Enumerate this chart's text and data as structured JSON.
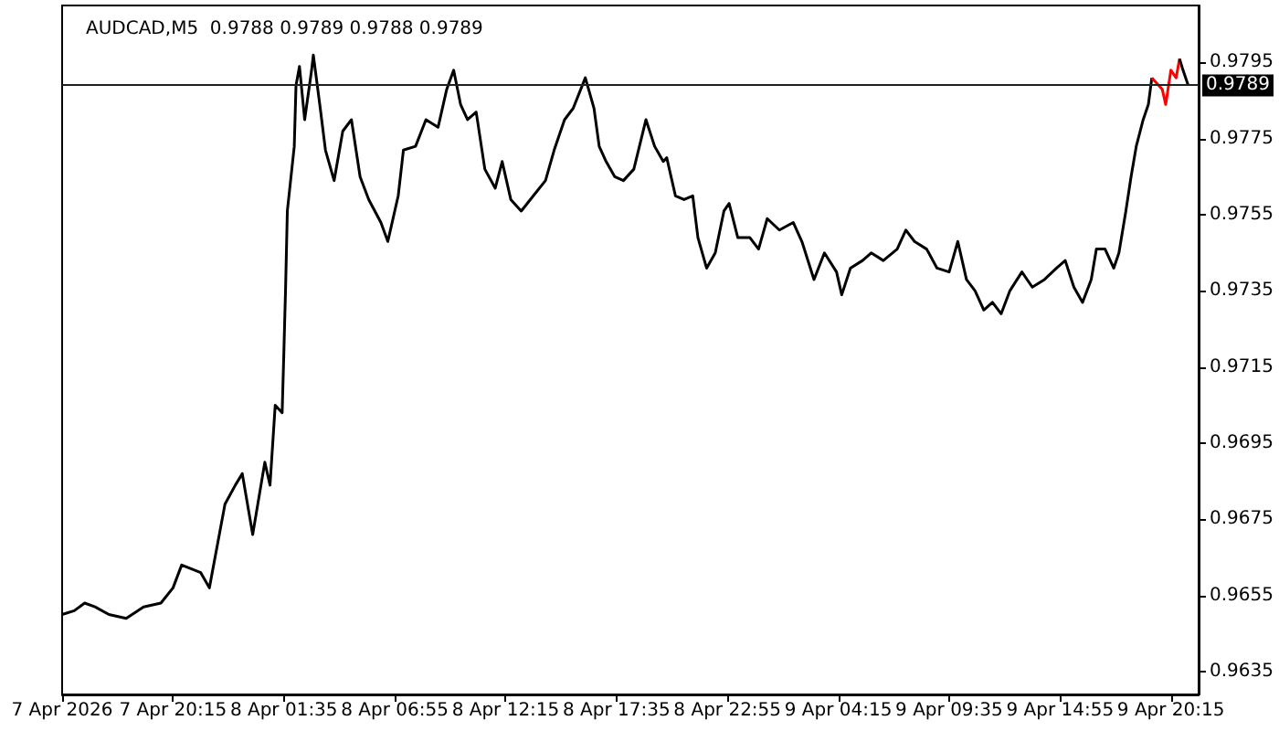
{
  "chart_data": {
    "type": "line",
    "title": "AUDCAD,M5  0.9788 0.9789 0.9788 0.9789",
    "series": [
      {
        "color": "#000000",
        "x": [
          "2026-04-07T14:55",
          "2026-04-07T15:30",
          "2026-04-07T16:00",
          "2026-04-07T16:30",
          "2026-04-07T17:10",
          "2026-04-07T18:00",
          "2026-04-07T18:50",
          "2026-04-07T19:40",
          "2026-04-07T20:15",
          "2026-04-07T20:40",
          "2026-04-07T21:35",
          "2026-04-07T22:00",
          "2026-04-07T22:45",
          "2026-04-07T23:15",
          "2026-04-07T23:35",
          "2026-04-08T00:05",
          "2026-04-08T00:40",
          "2026-04-08T00:55",
          "2026-04-08T01:10",
          "2026-04-08T01:30",
          "2026-04-08T01:35",
          "2026-04-08T01:40",
          "2026-04-08T01:45",
          "2026-04-08T02:05",
          "2026-04-08T02:10",
          "2026-04-08T02:20",
          "2026-04-08T02:35",
          "2026-04-08T02:55",
          "2026-04-08T03:00",
          "2026-04-08T03:20",
          "2026-04-08T03:35",
          "2026-04-08T04:00",
          "2026-04-08T04:25",
          "2026-04-08T04:50",
          "2026-04-08T05:15",
          "2026-04-08T05:40",
          "2026-04-08T06:15",
          "2026-04-08T06:35",
          "2026-04-08T07:05",
          "2026-04-08T07:20",
          "2026-04-08T07:55",
          "2026-04-08T08:25",
          "2026-04-08T09:00",
          "2026-04-08T09:25",
          "2026-04-08T09:45",
          "2026-04-08T10:05",
          "2026-04-08T10:25",
          "2026-04-08T10:50",
          "2026-04-08T11:15",
          "2026-04-08T11:45",
          "2026-04-08T12:05",
          "2026-04-08T12:30",
          "2026-04-08T13:00",
          "2026-04-08T13:35",
          "2026-04-08T14:10",
          "2026-04-08T14:35",
          "2026-04-08T15:05",
          "2026-04-08T15:30",
          "2026-04-08T16:05",
          "2026-04-08T16:30",
          "2026-04-08T16:45",
          "2026-04-08T17:05",
          "2026-04-08T17:30",
          "2026-04-08T17:55",
          "2026-04-08T18:25",
          "2026-04-08T19:00",
          "2026-04-08T19:25",
          "2026-04-08T19:50",
          "2026-04-08T20:00",
          "2026-04-08T20:25",
          "2026-04-08T20:50",
          "2026-04-08T21:15",
          "2026-04-08T21:30",
          "2026-04-08T21:55",
          "2026-04-08T22:20",
          "2026-04-08T22:45",
          "2026-04-08T23:00",
          "2026-04-08T23:25",
          "2026-04-09T00:00",
          "2026-04-09T00:25",
          "2026-04-09T00:50",
          "2026-04-09T01:25",
          "2026-04-09T02:05",
          "2026-04-09T02:30",
          "2026-04-09T03:05",
          "2026-04-09T03:35",
          "2026-04-09T04:10",
          "2026-04-09T04:25",
          "2026-04-09T04:50",
          "2026-04-09T05:25",
          "2026-04-09T05:50",
          "2026-04-09T06:25",
          "2026-04-09T07:05",
          "2026-04-09T07:30",
          "2026-04-09T07:55",
          "2026-04-09T08:30",
          "2026-04-09T09:00",
          "2026-04-09T09:35",
          "2026-04-09T10:00",
          "2026-04-09T10:25",
          "2026-04-09T10:50",
          "2026-04-09T11:15",
          "2026-04-09T11:40",
          "2026-04-09T12:05",
          "2026-04-09T12:30",
          "2026-04-09T13:05",
          "2026-04-09T13:35",
          "2026-04-09T14:10",
          "2026-04-09T14:45",
          "2026-04-09T15:10",
          "2026-04-09T15:35",
          "2026-04-09T16:00",
          "2026-04-09T16:25",
          "2026-04-09T16:40",
          "2026-04-09T17:05",
          "2026-04-09T17:30",
          "2026-04-09T17:45",
          "2026-04-09T18:05",
          "2026-04-09T18:20",
          "2026-04-09T18:35",
          "2026-04-09T18:55",
          "2026-04-09T19:10",
          "2026-04-09T19:20"
        ],
        "values": [
          0.965,
          0.9651,
          0.9653,
          0.9652,
          0.965,
          0.9649,
          0.9652,
          0.9653,
          0.9657,
          0.9663,
          0.9661,
          0.9657,
          0.9679,
          0.9684,
          0.9687,
          0.9671,
          0.969,
          0.9684,
          0.9705,
          0.9703,
          0.9719,
          0.9736,
          0.9756,
          0.9773,
          0.9789,
          0.9794,
          0.978,
          0.9793,
          0.9797,
          0.9783,
          0.9772,
          0.9764,
          0.9777,
          0.978,
          0.9765,
          0.9759,
          0.9753,
          0.9748,
          0.976,
          0.9772,
          0.9773,
          0.978,
          0.9778,
          0.9788,
          0.9793,
          0.9784,
          0.978,
          0.9782,
          0.9767,
          0.9762,
          0.9769,
          0.9759,
          0.9756,
          0.976,
          0.9764,
          0.9772,
          0.978,
          0.9783,
          0.9791,
          0.9783,
          0.9773,
          0.9769,
          0.9765,
          0.9764,
          0.9767,
          0.978,
          0.9773,
          0.9769,
          0.977,
          0.976,
          0.9759,
          0.976,
          0.9749,
          0.9741,
          0.9745,
          0.9756,
          0.9758,
          0.9749,
          0.9749,
          0.9746,
          0.9754,
          0.9751,
          0.9753,
          0.9748,
          0.9738,
          0.9745,
          0.974,
          0.9734,
          0.9741,
          0.9743,
          0.9745,
          0.9743,
          0.9746,
          0.9751,
          0.9748,
          0.9746,
          0.9741,
          0.974,
          0.9748,
          0.9738,
          0.9735,
          0.973,
          0.9732,
          0.9729,
          0.9735,
          0.974,
          0.9736,
          0.9738,
          0.9741,
          0.9743,
          0.9736,
          0.9732,
          0.9738,
          0.9746,
          0.9746,
          0.9741,
          0.9745,
          0.9756,
          0.9765,
          0.9773,
          0.978,
          0.9784,
          0.9791
        ]
      },
      {
        "color": "#ff0000",
        "x": [
          "2026-04-09T19:20",
          "2026-04-09T19:50",
          "2026-04-09T20:00",
          "2026-04-09T20:15",
          "2026-04-09T20:30",
          "2026-04-09T20:40"
        ],
        "values": [
          0.9791,
          0.9788,
          0.9784,
          0.9793,
          0.9791,
          0.9796
        ]
      },
      {
        "color": "#000000",
        "x": [
          "2026-04-09T20:40",
          "2026-04-09T20:50",
          "2026-04-09T21:05"
        ],
        "values": [
          0.9796,
          0.9793,
          0.9789
        ]
      }
    ],
    "xlim": [
      "2026-04-07T14:55",
      "2026-04-09T21:35"
    ],
    "xticks": [
      {
        "value": "2026-04-07T14:55",
        "label": "7 Apr 2026"
      },
      {
        "value": "2026-04-07T20:15",
        "label": "7 Apr 20:15"
      },
      {
        "value": "2026-04-08T01:35",
        "label": "8 Apr 01:35"
      },
      {
        "value": "2026-04-08T06:55",
        "label": "8 Apr 06:55"
      },
      {
        "value": "2026-04-08T12:15",
        "label": "8 Apr 12:15"
      },
      {
        "value": "2026-04-08T17:35",
        "label": "8 Apr 17:35"
      },
      {
        "value": "2026-04-08T22:55",
        "label": "8 Apr 22:55"
      },
      {
        "value": "2026-04-09T04:15",
        "label": "9 Apr 04:15"
      },
      {
        "value": "2026-04-09T09:35",
        "label": "9 Apr 09:35"
      },
      {
        "value": "2026-04-09T14:55",
        "label": "9 Apr 14:55"
      },
      {
        "value": "2026-04-09T20:15",
        "label": "9 Apr 20:15"
      }
    ],
    "ylim": [
      0.9629,
      0.981
    ],
    "yticks": [
      0.9635,
      0.9655,
      0.9675,
      0.9695,
      0.9715,
      0.9735,
      0.9755,
      0.9775,
      0.9795
    ],
    "ref_lines": [
      {
        "axis": "y",
        "value": 0.9789,
        "label": "0.9789",
        "color": "#202020"
      }
    ],
    "grid": false,
    "marker": "none",
    "line_style": "solid"
  }
}
